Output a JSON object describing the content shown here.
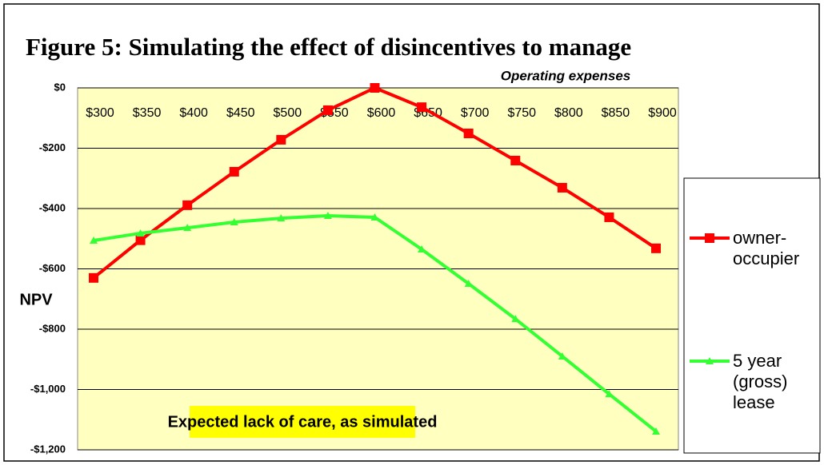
{
  "chart_data": {
    "type": "line",
    "title": "Figure 5: Simulating the effect of disincentives to manage",
    "x_label": "Operating expenses",
    "y_label": "NPV",
    "annotation": "Expected lack of care, as simulated",
    "categories": [
      "$300",
      "$350",
      "$400",
      "$450",
      "$500",
      "$550",
      "$600",
      "$650",
      "$700",
      "$750",
      "$800",
      "$850",
      "$900"
    ],
    "series": [
      {
        "name": "owner-occupier",
        "color": "#ff0000",
        "marker": "square",
        "values": [
          -630,
          -505,
          -389,
          -278,
          -172,
          -74,
          0,
          -64,
          -151,
          -241,
          -331,
          -429,
          -532
        ]
      },
      {
        "name": "5 year (gross) lease",
        "color": "#33ff33",
        "marker": "triangle",
        "values": [
          -506,
          -482,
          -464,
          -445,
          -432,
          -424,
          -429,
          -535,
          -649,
          -766,
          -890,
          -1015,
          -1139
        ]
      }
    ],
    "ylim": [
      -1200,
      0
    ],
    "yticks": [
      {
        "value": 0,
        "label": "$0"
      },
      {
        "value": -200,
        "label": "-$200"
      },
      {
        "value": -400,
        "label": "-$400"
      },
      {
        "value": -600,
        "label": "-$600"
      },
      {
        "value": -800,
        "label": "-$800"
      },
      {
        "value": -1000,
        "label": "-$1,000"
      },
      {
        "value": -1200,
        "label": "-$1,200"
      }
    ],
    "grid": true,
    "legend": "right",
    "x_axis_position": "top"
  }
}
